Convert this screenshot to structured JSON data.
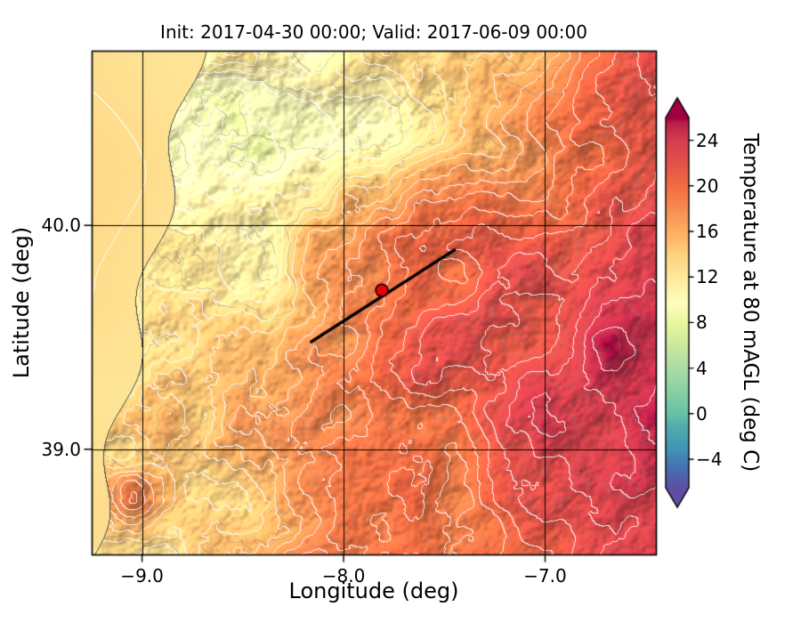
{
  "chart_data": {
    "type": "heatmap",
    "subtype": "filled-contour-temperature-map-with-white-contour-lines",
    "title": "Init: 2017-04-30 00:00; Valid: 2017-06-09 00:00",
    "xlabel": "Longitude (deg)",
    "ylabel": "Latitude (deg)",
    "xlim": [
      -9.25,
      -6.45
    ],
    "ylim": [
      38.53,
      40.78
    ],
    "x_ticks": [
      {
        "value": -9.0,
        "label": "−9.0"
      },
      {
        "value": -8.0,
        "label": "−8.0"
      },
      {
        "value": -7.0,
        "label": "−7.0"
      }
    ],
    "y_ticks": [
      {
        "value": 40.0,
        "label": "40.0"
      },
      {
        "value": 39.0,
        "label": "39.0"
      }
    ],
    "grid": true,
    "gridline_x_values": [
      -9,
      -8,
      -7
    ],
    "gridline_y_values": [
      39,
      40
    ],
    "colorbar": {
      "label": "Temperature at 80 mAGL (deg C)",
      "vmin": -6.5,
      "vmax": 26,
      "extend": "both",
      "ticks": [
        {
          "value": 24,
          "label": "24"
        },
        {
          "value": 20,
          "label": "20"
        },
        {
          "value": 16,
          "label": "16"
        },
        {
          "value": 12,
          "label": "12"
        },
        {
          "value": 8,
          "label": "8"
        },
        {
          "value": 4,
          "label": "4"
        },
        {
          "value": 0,
          "label": "0"
        },
        {
          "value": -4,
          "label": "−4"
        }
      ],
      "colormap_stops": [
        {
          "value": -6.5,
          "color": "#5e4fa2"
        },
        {
          "value": -5,
          "color": "#486cb0"
        },
        {
          "value": -3,
          "color": "#3f96b7"
        },
        {
          "value": -1,
          "color": "#54aead"
        },
        {
          "value": 0,
          "color": "#66c2a5"
        },
        {
          "value": 2,
          "color": "#89d0a4"
        },
        {
          "value": 4,
          "color": "#aadda4"
        },
        {
          "value": 6,
          "color": "#cbe99d"
        },
        {
          "value": 8,
          "color": "#e8f69c"
        },
        {
          "value": 9.75,
          "color": "#ffffbf"
        },
        {
          "value": 12,
          "color": "#fee99b"
        },
        {
          "value": 14,
          "color": "#fed27f"
        },
        {
          "value": 16,
          "color": "#fdae61"
        },
        {
          "value": 18,
          "color": "#f88d52"
        },
        {
          "value": 20,
          "color": "#f46d43"
        },
        {
          "value": 22,
          "color": "#e25249"
        },
        {
          "value": 24,
          "color": "#d53e4f"
        },
        {
          "value": 25.5,
          "color": "#bc2249"
        },
        {
          "value": 26,
          "color": "#9e0142"
        }
      ]
    },
    "overlays": {
      "cross_section_line": {
        "lon1": -8.16,
        "lat1": 39.48,
        "lon2": -7.45,
        "lat2": 39.89,
        "color": "#000000",
        "width": 3.5
      },
      "marker": {
        "lon": -7.81,
        "lat": 39.71,
        "color": "#e8000d",
        "edge_color": "#000000",
        "radius": 7
      }
    },
    "approx_field": {
      "note": "coarse surface temperatures (deg C) read from the map, rows north to south",
      "lons": [
        -9.2,
        -8.8,
        -8.4,
        -8.0,
        -7.6,
        -7.2,
        -6.8,
        -6.45
      ],
      "lats": [
        40.78,
        40.35,
        39.9,
        39.5,
        39.1,
        38.53
      ],
      "values_degC": [
        [
          12.5,
          11.0,
          9.5,
          11.0,
          12.5,
          16.0,
          20.0,
          22.0
        ],
        [
          12.5,
          10.5,
          10.0,
          12.0,
          13.0,
          15.5,
          19.5,
          22.5
        ],
        [
          12.5,
          12.0,
          12.5,
          16.5,
          21.0,
          22.0,
          22.5,
          24.0
        ],
        [
          12.5,
          12.5,
          13.5,
          17.0,
          21.5,
          22.5,
          23.5,
          25.0
        ],
        [
          13.0,
          13.5,
          15.0,
          17.5,
          20.0,
          22.0,
          23.5,
          25.0
        ],
        [
          13.5,
          14.5,
          15.5,
          17.5,
          19.0,
          21.0,
          22.5,
          23.5
        ]
      ],
      "ocean_value_degC": 12.3
    }
  }
}
